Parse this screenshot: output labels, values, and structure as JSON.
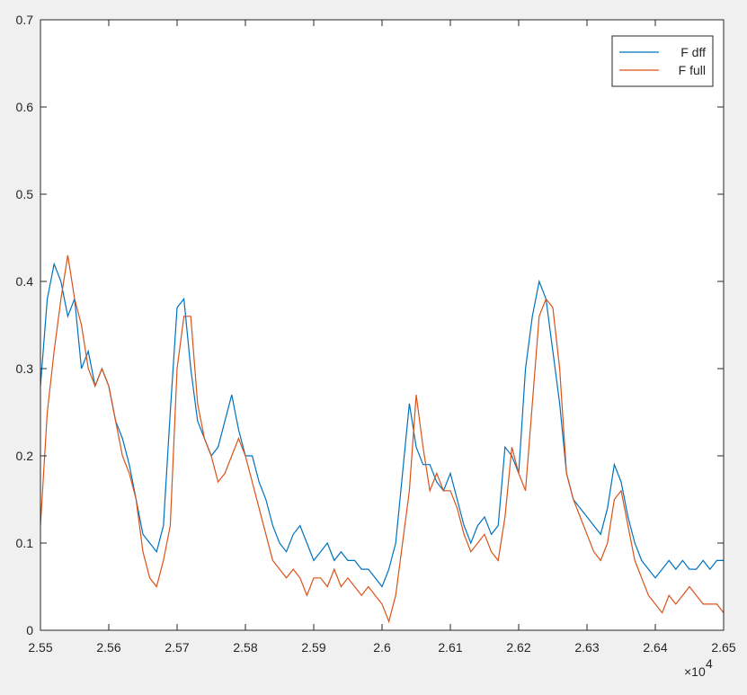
{
  "chart_data": {
    "type": "line",
    "x": [
      25500,
      25510,
      25520,
      25530,
      25540,
      25550,
      25560,
      25570,
      25580,
      25590,
      25600,
      25610,
      25620,
      25630,
      25640,
      25650,
      25660,
      25670,
      25680,
      25690,
      25700,
      25710,
      25720,
      25730,
      25740,
      25750,
      25760,
      25770,
      25780,
      25790,
      25800,
      25810,
      25820,
      25830,
      25840,
      25850,
      25860,
      25870,
      25880,
      25890,
      25900,
      25910,
      25920,
      25930,
      25940,
      25950,
      25960,
      25970,
      25980,
      25990,
      26000,
      26010,
      26020,
      26030,
      26040,
      26050,
      26060,
      26070,
      26080,
      26090,
      26100,
      26110,
      26120,
      26130,
      26140,
      26150,
      26160,
      26170,
      26180,
      26190,
      26200,
      26210,
      26220,
      26230,
      26240,
      26250,
      26260,
      26270,
      26280,
      26290,
      26300,
      26310,
      26320,
      26330,
      26340,
      26350,
      26360,
      26370,
      26380,
      26390,
      26400,
      26410,
      26420,
      26430,
      26440,
      26450,
      26460,
      26470,
      26480,
      26490,
      26500
    ],
    "series": [
      {
        "name": "F dff",
        "color": "#0072bd",
        "values": [
          0.28,
          0.38,
          0.42,
          0.4,
          0.36,
          0.38,
          0.3,
          0.32,
          0.28,
          0.3,
          0.28,
          0.24,
          0.22,
          0.19,
          0.15,
          0.11,
          0.1,
          0.09,
          0.12,
          0.25,
          0.37,
          0.38,
          0.3,
          0.24,
          0.22,
          0.2,
          0.21,
          0.24,
          0.27,
          0.23,
          0.2,
          0.2,
          0.17,
          0.15,
          0.12,
          0.1,
          0.09,
          0.11,
          0.12,
          0.1,
          0.08,
          0.09,
          0.1,
          0.08,
          0.09,
          0.08,
          0.08,
          0.07,
          0.07,
          0.06,
          0.05,
          0.07,
          0.1,
          0.18,
          0.26,
          0.21,
          0.19,
          0.19,
          0.17,
          0.16,
          0.18,
          0.15,
          0.12,
          0.1,
          0.12,
          0.13,
          0.11,
          0.12,
          0.21,
          0.2,
          0.18,
          0.3,
          0.36,
          0.4,
          0.38,
          0.32,
          0.26,
          0.18,
          0.15,
          0.14,
          0.13,
          0.12,
          0.11,
          0.14,
          0.19,
          0.17,
          0.13,
          0.1,
          0.08,
          0.07,
          0.06,
          0.07,
          0.08,
          0.07,
          0.08,
          0.07,
          0.07,
          0.08,
          0.07,
          0.08,
          0.08
        ]
      },
      {
        "name": "F full",
        "color": "#d95319",
        "values": [
          0.12,
          0.25,
          0.32,
          0.38,
          0.43,
          0.38,
          0.35,
          0.3,
          0.28,
          0.3,
          0.28,
          0.24,
          0.2,
          0.18,
          0.15,
          0.09,
          0.06,
          0.05,
          0.08,
          0.12,
          0.3,
          0.36,
          0.36,
          0.26,
          0.22,
          0.2,
          0.17,
          0.18,
          0.2,
          0.22,
          0.2,
          0.17,
          0.14,
          0.11,
          0.08,
          0.07,
          0.06,
          0.07,
          0.06,
          0.04,
          0.06,
          0.06,
          0.05,
          0.07,
          0.05,
          0.06,
          0.05,
          0.04,
          0.05,
          0.04,
          0.03,
          0.01,
          0.04,
          0.1,
          0.16,
          0.27,
          0.21,
          0.16,
          0.18,
          0.16,
          0.16,
          0.14,
          0.11,
          0.09,
          0.1,
          0.11,
          0.09,
          0.08,
          0.13,
          0.21,
          0.18,
          0.16,
          0.26,
          0.36,
          0.38,
          0.37,
          0.3,
          0.18,
          0.15,
          0.13,
          0.11,
          0.09,
          0.08,
          0.1,
          0.15,
          0.16,
          0.12,
          0.08,
          0.06,
          0.04,
          0.03,
          0.02,
          0.04,
          0.03,
          0.04,
          0.05,
          0.04,
          0.03,
          0.03,
          0.03,
          0.02
        ]
      }
    ],
    "xlim": [
      25500,
      26500
    ],
    "xticks": [
      {
        "value": 25500,
        "label": "2.55"
      },
      {
        "value": 25600,
        "label": "2.56"
      },
      {
        "value": 25700,
        "label": "2.57"
      },
      {
        "value": 25800,
        "label": "2.58"
      },
      {
        "value": 25900,
        "label": "2.59"
      },
      {
        "value": 26000,
        "label": "2.6"
      },
      {
        "value": 26100,
        "label": "2.61"
      },
      {
        "value": 26200,
        "label": "2.62"
      },
      {
        "value": 26300,
        "label": "2.63"
      },
      {
        "value": 26400,
        "label": "2.64"
      },
      {
        "value": 26500,
        "label": "2.65"
      }
    ],
    "x_exponent_base": "×10",
    "x_exponent_power": "4",
    "ylim": [
      0,
      0.7
    ],
    "yticks": [
      0,
      0.1,
      0.2,
      0.3,
      0.4,
      0.5,
      0.6,
      0.7
    ],
    "legend": "northeast"
  }
}
